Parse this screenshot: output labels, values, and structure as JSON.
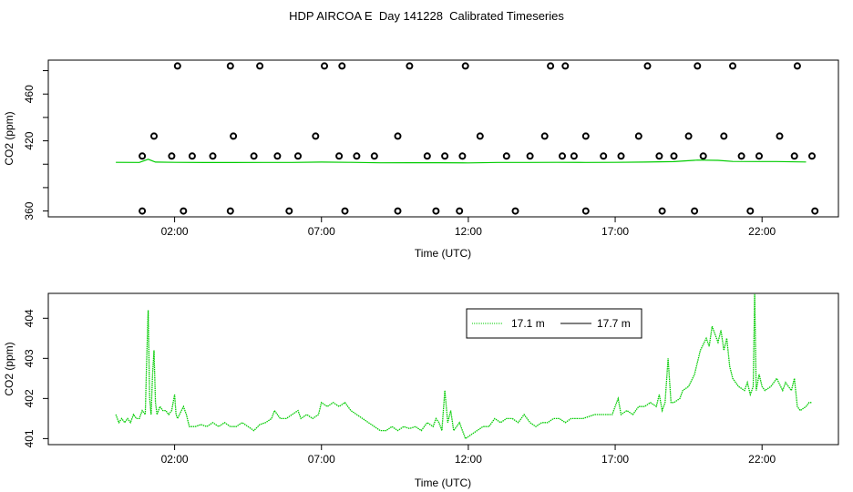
{
  "title": "HDP AIRCOA E  Day 141228  Calibrated Timeseries",
  "colors": {
    "series_17_1": "#00cc00",
    "series_17_7": "#000000",
    "points": "#000000",
    "frame": "#000000",
    "background": "#ffffff"
  },
  "chart_data": [
    {
      "type": "scatter",
      "xlabel": "Time (UTC)",
      "ylabel": "CO2 (ppm)",
      "x_unit": "hours UTC",
      "xlim": [
        -2.3,
        24.6
      ],
      "ylim": [
        355,
        489
      ],
      "x_ticks": [
        2,
        7,
        12,
        17,
        22
      ],
      "x_tick_labels": [
        "02:00",
        "07:00",
        "12:00",
        "17:00",
        "22:00"
      ],
      "y_ticks": [
        360,
        380,
        400,
        420,
        440,
        460,
        480
      ],
      "y_tick_labels": [
        "360",
        "",
        "",
        "420",
        "",
        "460",
        ""
      ],
      "grid": false,
      "legend": "none",
      "line_series": {
        "values": [
          [
            0,
            401.6
          ],
          [
            0.8,
            401.5
          ],
          [
            1.1,
            404.2
          ],
          [
            1.35,
            401.8
          ],
          [
            2,
            401.6
          ],
          [
            3,
            401.4
          ],
          [
            4,
            401.4
          ],
          [
            5,
            401.5
          ],
          [
            6,
            401.5
          ],
          [
            7,
            401.8
          ],
          [
            8,
            401.6
          ],
          [
            9,
            401.2
          ],
          [
            10,
            401.3
          ],
          [
            11,
            401.3
          ],
          [
            12,
            401.1
          ],
          [
            13,
            401.5
          ],
          [
            14,
            401.5
          ],
          [
            15,
            401.6
          ],
          [
            16,
            401.5
          ],
          [
            17,
            401.6
          ],
          [
            18,
            401.8
          ],
          [
            19,
            402.2
          ],
          [
            19.8,
            403.5
          ],
          [
            20.5,
            403.3
          ],
          [
            21,
            402.4
          ],
          [
            21.8,
            402.3
          ],
          [
            22.5,
            402.3
          ],
          [
            23.5,
            401.9
          ]
        ]
      },
      "points": {
        "x": [
          0.9,
          1.3,
          1.9,
          2.6,
          3.3,
          4.0,
          4.7,
          5.5,
          6.2,
          6.8,
          7.6,
          8.2,
          8.8,
          9.6,
          10.6,
          11.2,
          11.8,
          12.4,
          13.3,
          14.1,
          14.6,
          15.2,
          15.6,
          16.0,
          16.6,
          17.2,
          17.8,
          18.5,
          19.0,
          19.5,
          20.0,
          20.7,
          21.3,
          21.9,
          22.6,
          23.1,
          23.7,
          2.1,
          3.9,
          4.9,
          7.1,
          7.7,
          10.0,
          11.9,
          14.8,
          15.3,
          18.1,
          19.8,
          21.0,
          23.2,
          0.9,
          2.3,
          3.9,
          5.9,
          7.8,
          9.6,
          10.9,
          11.7,
          13.6,
          16.0,
          18.6,
          19.7,
          21.6,
          23.8
        ],
        "y": [
          407,
          424,
          407,
          407,
          407,
          424,
          407,
          407,
          407,
          424,
          407,
          407,
          407,
          424,
          407,
          407,
          407,
          424,
          407,
          407,
          424,
          407,
          407,
          424,
          407,
          407,
          424,
          407,
          407,
          424,
          407,
          424,
          407,
          407,
          424,
          407,
          407,
          484,
          484,
          484,
          484,
          484,
          484,
          484,
          484,
          484,
          484,
          484,
          484,
          484,
          360,
          360,
          360,
          360,
          360,
          360,
          360,
          360,
          360,
          360,
          360,
          360,
          360,
          360
        ]
      }
    },
    {
      "type": "line",
      "xlabel": "Time (UTC)",
      "ylabel": "CO2 (ppm)",
      "x_unit": "hours UTC",
      "xlim": [
        -2.3,
        24.6
      ],
      "ylim": [
        400.85,
        404.62
      ],
      "x_ticks": [
        2,
        7,
        12,
        17,
        22
      ],
      "x_tick_labels": [
        "02:00",
        "07:00",
        "12:00",
        "17:00",
        "22:00"
      ],
      "y_ticks": [
        401,
        402,
        403,
        404
      ],
      "y_tick_labels": [
        "401",
        "402",
        "403",
        "404"
      ],
      "grid": false,
      "legend": "top-right",
      "series": [
        {
          "name": "17.1 m",
          "values": [
            [
              0,
              401.6
            ],
            [
              0.1,
              401.4
            ],
            [
              0.2,
              401.5
            ],
            [
              0.3,
              401.4
            ],
            [
              0.4,
              401.5
            ],
            [
              0.5,
              401.4
            ],
            [
              0.6,
              401.6
            ],
            [
              0.7,
              401.5
            ],
            [
              0.8,
              401.5
            ],
            [
              0.9,
              401.7
            ],
            [
              1.0,
              401.6
            ],
            [
              1.05,
              403.0
            ],
            [
              1.1,
              404.2
            ],
            [
              1.15,
              402.0
            ],
            [
              1.2,
              401.6
            ],
            [
              1.25,
              402.6
            ],
            [
              1.3,
              403.2
            ],
            [
              1.35,
              401.9
            ],
            [
              1.4,
              401.6
            ],
            [
              1.5,
              401.8
            ],
            [
              1.6,
              401.7
            ],
            [
              1.7,
              401.7
            ],
            [
              1.8,
              401.6
            ],
            [
              1.9,
              401.7
            ],
            [
              2.0,
              402.1
            ],
            [
              2.05,
              401.6
            ],
            [
              2.1,
              401.5
            ],
            [
              2.3,
              401.8
            ],
            [
              2.4,
              401.6
            ],
            [
              2.5,
              401.3
            ],
            [
              2.7,
              401.3
            ],
            [
              2.9,
              401.35
            ],
            [
              3.1,
              401.3
            ],
            [
              3.3,
              401.4
            ],
            [
              3.5,
              401.3
            ],
            [
              3.7,
              401.4
            ],
            [
              3.9,
              401.3
            ],
            [
              4.1,
              401.3
            ],
            [
              4.3,
              401.4
            ],
            [
              4.5,
              401.3
            ],
            [
              4.7,
              401.2
            ],
            [
              4.9,
              401.35
            ],
            [
              5.1,
              401.4
            ],
            [
              5.3,
              401.5
            ],
            [
              5.4,
              401.7
            ],
            [
              5.6,
              401.5
            ],
            [
              5.8,
              401.5
            ],
            [
              6.0,
              401.6
            ],
            [
              6.2,
              401.7
            ],
            [
              6.3,
              401.5
            ],
            [
              6.5,
              401.6
            ],
            [
              6.7,
              401.5
            ],
            [
              6.9,
              401.6
            ],
            [
              7.0,
              401.9
            ],
            [
              7.2,
              401.8
            ],
            [
              7.4,
              401.9
            ],
            [
              7.6,
              401.8
            ],
            [
              7.8,
              401.9
            ],
            [
              8.0,
              401.7
            ],
            [
              8.2,
              401.6
            ],
            [
              8.4,
              401.5
            ],
            [
              8.6,
              401.4
            ],
            [
              8.8,
              401.3
            ],
            [
              9.0,
              401.2
            ],
            [
              9.2,
              401.2
            ],
            [
              9.4,
              401.3
            ],
            [
              9.6,
              401.2
            ],
            [
              9.8,
              401.3
            ],
            [
              10.0,
              401.25
            ],
            [
              10.2,
              401.3
            ],
            [
              10.4,
              401.2
            ],
            [
              10.6,
              401.4
            ],
            [
              10.8,
              401.3
            ],
            [
              10.9,
              401.5
            ],
            [
              11.0,
              401.4
            ],
            [
              11.1,
              401.2
            ],
            [
              11.2,
              402.2
            ],
            [
              11.3,
              401.4
            ],
            [
              11.4,
              401.7
            ],
            [
              11.5,
              401.2
            ],
            [
              11.7,
              401.4
            ],
            [
              11.9,
              401.0
            ],
            [
              12.1,
              401.1
            ],
            [
              12.3,
              401.2
            ],
            [
              12.5,
              401.3
            ],
            [
              12.7,
              401.3
            ],
            [
              12.9,
              401.5
            ],
            [
              13.1,
              401.4
            ],
            [
              13.3,
              401.5
            ],
            [
              13.5,
              401.5
            ],
            [
              13.7,
              401.4
            ],
            [
              13.9,
              401.6
            ],
            [
              14.1,
              401.4
            ],
            [
              14.3,
              401.3
            ],
            [
              14.5,
              401.4
            ],
            [
              14.7,
              401.4
            ],
            [
              14.9,
              401.5
            ],
            [
              15.1,
              401.5
            ],
            [
              15.3,
              401.4
            ],
            [
              15.5,
              401.5
            ],
            [
              15.7,
              401.5
            ],
            [
              15.9,
              401.5
            ],
            [
              16.1,
              401.55
            ],
            [
              16.3,
              401.6
            ],
            [
              16.5,
              401.6
            ],
            [
              16.7,
              401.6
            ],
            [
              16.9,
              401.6
            ],
            [
              17.0,
              401.8
            ],
            [
              17.1,
              402.0
            ],
            [
              17.2,
              401.6
            ],
            [
              17.4,
              401.7
            ],
            [
              17.6,
              401.6
            ],
            [
              17.8,
              401.8
            ],
            [
              18.0,
              401.8
            ],
            [
              18.2,
              401.9
            ],
            [
              18.4,
              401.8
            ],
            [
              18.5,
              402.1
            ],
            [
              18.6,
              401.7
            ],
            [
              18.7,
              401.9
            ],
            [
              18.8,
              403.0
            ],
            [
              18.9,
              401.9
            ],
            [
              19.0,
              401.9
            ],
            [
              19.2,
              402.0
            ],
            [
              19.3,
              402.2
            ],
            [
              19.5,
              402.3
            ],
            [
              19.7,
              402.6
            ],
            [
              19.9,
              403.2
            ],
            [
              20.1,
              403.5
            ],
            [
              20.2,
              403.3
            ],
            [
              20.3,
              403.8
            ],
            [
              20.4,
              403.6
            ],
            [
              20.5,
              403.4
            ],
            [
              20.6,
              403.7
            ],
            [
              20.7,
              403.2
            ],
            [
              20.8,
              403.5
            ],
            [
              20.9,
              402.8
            ],
            [
              21.0,
              402.5
            ],
            [
              21.2,
              402.3
            ],
            [
              21.4,
              402.2
            ],
            [
              21.5,
              402.4
            ],
            [
              21.6,
              402.1
            ],
            [
              21.7,
              402.3
            ],
            [
              21.75,
              404.6
            ],
            [
              21.8,
              402.2
            ],
            [
              21.9,
              402.6
            ],
            [
              22.0,
              402.3
            ],
            [
              22.1,
              402.2
            ],
            [
              22.3,
              402.3
            ],
            [
              22.5,
              402.5
            ],
            [
              22.7,
              402.2
            ],
            [
              22.8,
              402.4
            ],
            [
              23.0,
              402.2
            ],
            [
              23.1,
              402.5
            ],
            [
              23.2,
              401.8
            ],
            [
              23.3,
              401.7
            ],
            [
              23.5,
              401.8
            ],
            [
              23.6,
              401.9
            ],
            [
              23.7,
              401.9
            ]
          ]
        },
        {
          "name": "17.7 m",
          "values": []
        }
      ]
    }
  ]
}
